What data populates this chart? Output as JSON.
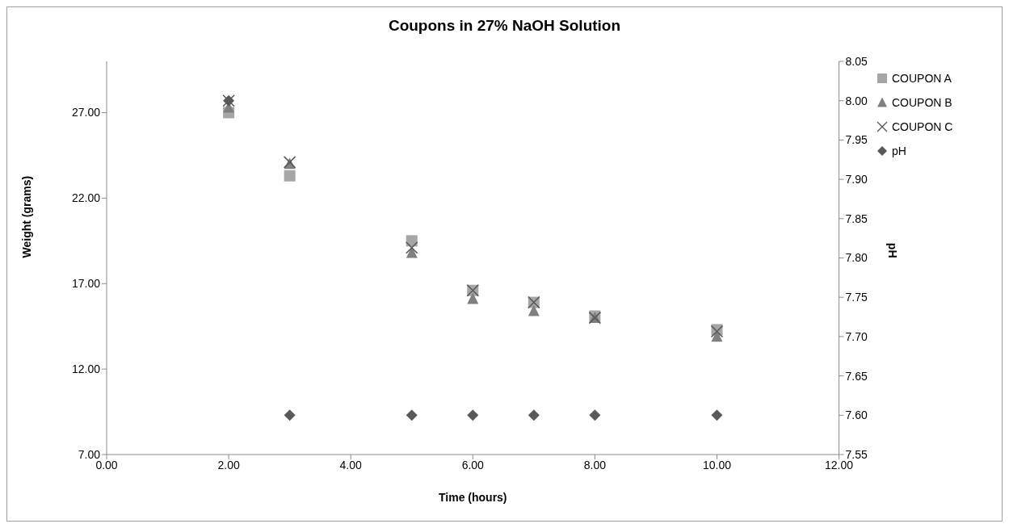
{
  "chart_data": {
    "type": "scatter",
    "title": "Coupons in 27% NaOH Solution",
    "xlabel": "Time (hours)",
    "ylabel": "Weight (grams)",
    "y2label": "pH",
    "xlim": [
      0,
      12
    ],
    "xticks": [
      {
        "value": 0,
        "label": "0.00"
      },
      {
        "value": 2,
        "label": "2.00"
      },
      {
        "value": 4,
        "label": "4.00"
      },
      {
        "value": 6,
        "label": "6.00"
      },
      {
        "value": 8,
        "label": "8.00"
      },
      {
        "value": 10,
        "label": "10.00"
      },
      {
        "value": 12,
        "label": "12.00"
      }
    ],
    "ylim": [
      7,
      30
    ],
    "yticks": [
      {
        "value": 7,
        "label": "7.00"
      },
      {
        "value": 12,
        "label": "12.00"
      },
      {
        "value": 17,
        "label": "17.00"
      },
      {
        "value": 22,
        "label": "22.00"
      },
      {
        "value": 27,
        "label": "27.00"
      }
    ],
    "y2lim": [
      7.55,
      8.05
    ],
    "y2ticks": [
      {
        "value": 7.55,
        "label": "7.55"
      },
      {
        "value": 7.6,
        "label": "7.60"
      },
      {
        "value": 7.65,
        "label": "7.65"
      },
      {
        "value": 7.7,
        "label": "7.70"
      },
      {
        "value": 7.75,
        "label": "7.75"
      },
      {
        "value": 7.8,
        "label": "7.80"
      },
      {
        "value": 7.85,
        "label": "7.85"
      },
      {
        "value": 7.9,
        "label": "7.90"
      },
      {
        "value": 7.95,
        "label": "7.95"
      },
      {
        "value": 8.0,
        "label": "8.00"
      },
      {
        "value": 8.05,
        "label": "8.05"
      }
    ],
    "x": [
      2,
      3,
      5,
      6,
      7,
      8,
      10
    ],
    "series": [
      {
        "name": "COUPON A",
        "color": "#a6a6a6",
        "marker": "square",
        "values": [
          27.0,
          23.3,
          19.5,
          16.6,
          15.9,
          15.1,
          14.3
        ]
      },
      {
        "name": "COUPON B",
        "color": "#808080",
        "marker": "triangle",
        "values": [
          27.3,
          24.0,
          18.8,
          16.1,
          15.4,
          15.0,
          13.9
        ]
      },
      {
        "name": "COUPON C",
        "color": "#595959",
        "marker": "cross",
        "values": [
          27.7,
          24.1,
          19.1,
          16.6,
          15.9,
          15.0,
          14.2
        ]
      },
      {
        "name": "pH",
        "color": "#595959",
        "marker": "diamond",
        "axis": "y2",
        "values": [
          8.0,
          7.6,
          7.6,
          7.6,
          7.6,
          7.6,
          7.6
        ]
      }
    ],
    "legend": "top right",
    "grid": false
  }
}
